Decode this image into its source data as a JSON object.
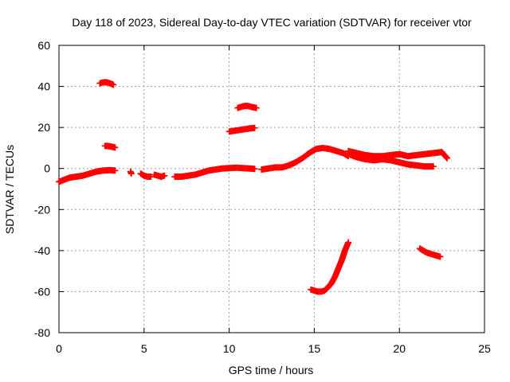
{
  "chart_data": {
    "type": "scatter",
    "title": "Day 118 of 2023, Sidereal Day-to-day VTEC variation (SDTVAR) for receiver vtor",
    "xlabel": "GPS time / hours",
    "ylabel": "SDTVAR / TECUs",
    "xlim": [
      0,
      25
    ],
    "ylim": [
      -80,
      60
    ],
    "xticks": [
      0,
      5,
      10,
      15,
      20,
      25
    ],
    "yticks": [
      -80,
      -60,
      -40,
      -20,
      0,
      20,
      40,
      60
    ],
    "xtick_labels": [
      "0",
      "5",
      "10",
      "15",
      "20",
      "25"
    ],
    "ytick_labels": [
      "-80",
      "-60",
      "-40",
      "-20",
      "0",
      "20",
      "40",
      "60"
    ],
    "grid": true,
    "marker": "+",
    "color": "#ff0000",
    "series": [
      {
        "name": "baseline-early",
        "x": [
          0.0,
          0.3,
          0.6,
          1.0,
          1.4,
          1.8,
          2.2,
          2.6,
          3.0,
          3.3
        ],
        "y": [
          -6.5,
          -5.5,
          -4.5,
          -4.0,
          -3.5,
          -2.5,
          -1.5,
          -1.0,
          -0.8,
          -1.0
        ]
      },
      {
        "name": "high-arc-1",
        "x": [
          2.4,
          2.6,
          2.8,
          3.0,
          3.2
        ],
        "y": [
          41.5,
          42.0,
          42.0,
          41.5,
          40.8
        ]
      },
      {
        "name": "mid-arc-1",
        "x": [
          2.7,
          2.85,
          3.0,
          3.15,
          3.3
        ],
        "y": [
          11.0,
          11.0,
          10.8,
          10.5,
          10.2
        ]
      },
      {
        "name": "fragment-a",
        "x": [
          4.2,
          4.25
        ],
        "y": [
          -1.5,
          -2.5
        ]
      },
      {
        "name": "fragment-b",
        "x": [
          4.8,
          5.0,
          5.2,
          5.4
        ],
        "y": [
          -2.5,
          -3.5,
          -4.0,
          -4.0
        ]
      },
      {
        "name": "fragment-c",
        "x": [
          5.6,
          5.8,
          6.0,
          6.2
        ],
        "y": [
          -3.0,
          -3.5,
          -4.0,
          -3.5
        ]
      },
      {
        "name": "baseline-mid",
        "x": [
          6.8,
          7.2,
          7.6,
          8.0,
          8.4,
          8.8,
          9.2,
          9.6,
          10.0,
          10.4,
          10.8,
          11.2,
          11.5
        ],
        "y": [
          -4.0,
          -4.0,
          -3.5,
          -3.0,
          -2.0,
          -1.0,
          -0.5,
          0.0,
          0.2,
          0.4,
          0.2,
          0.0,
          -0.2
        ]
      },
      {
        "name": "mid-arc-2",
        "x": [
          10.0,
          10.4,
          10.8,
          11.2,
          11.5
        ],
        "y": [
          18.0,
          18.5,
          19.0,
          19.5,
          19.8
        ]
      },
      {
        "name": "high-arc-2",
        "x": [
          10.5,
          10.7,
          10.9,
          11.1,
          11.3,
          11.6
        ],
        "y": [
          29.5,
          30.0,
          30.5,
          30.5,
          30.0,
          29.5
        ]
      },
      {
        "name": "rise-to-peak",
        "x": [
          11.9,
          12.3,
          12.7,
          13.1,
          13.5,
          13.9,
          14.3,
          14.7,
          15.1,
          15.5,
          15.9,
          16.3,
          16.7,
          17.0
        ],
        "y": [
          -0.5,
          0.0,
          0.5,
          0.5,
          1.5,
          3.0,
          5.0,
          7.5,
          9.5,
          10.0,
          9.5,
          8.5,
          7.5,
          6.0
        ]
      },
      {
        "name": "late-upper",
        "x": [
          17.0,
          17.5,
          18.0,
          18.5,
          19.0,
          19.5,
          20.0,
          20.5,
          21.0,
          21.5,
          22.0,
          22.5,
          22.8
        ],
        "y": [
          8.5,
          7.5,
          6.5,
          6.0,
          6.0,
          6.5,
          7.0,
          6.0,
          6.5,
          7.0,
          7.5,
          8.0,
          5.0
        ]
      },
      {
        "name": "late-lower",
        "x": [
          17.0,
          17.5,
          18.0,
          18.5,
          19.0,
          19.5,
          20.0,
          20.5,
          21.0,
          21.5,
          22.0
        ],
        "y": [
          7.0,
          5.5,
          4.5,
          4.0,
          4.5,
          4.0,
          3.0,
          2.0,
          1.5,
          1.0,
          1.0
        ]
      },
      {
        "name": "negative-arc-1",
        "x": [
          14.8,
          15.0,
          15.2,
          15.4,
          15.6,
          15.8,
          16.0,
          16.2,
          16.4,
          16.6,
          16.8,
          17.0
        ],
        "y": [
          -59.0,
          -59.5,
          -60.0,
          -60.0,
          -59.5,
          -58.0,
          -56.0,
          -53.0,
          -49.0,
          -45.0,
          -40.0,
          -36.0
        ]
      },
      {
        "name": "negative-arc-2",
        "x": [
          21.2,
          21.4,
          21.6,
          21.8,
          22.0,
          22.2,
          22.4
        ],
        "y": [
          -39.0,
          -40.0,
          -41.0,
          -41.5,
          -42.0,
          -42.5,
          -43.0
        ]
      }
    ]
  }
}
